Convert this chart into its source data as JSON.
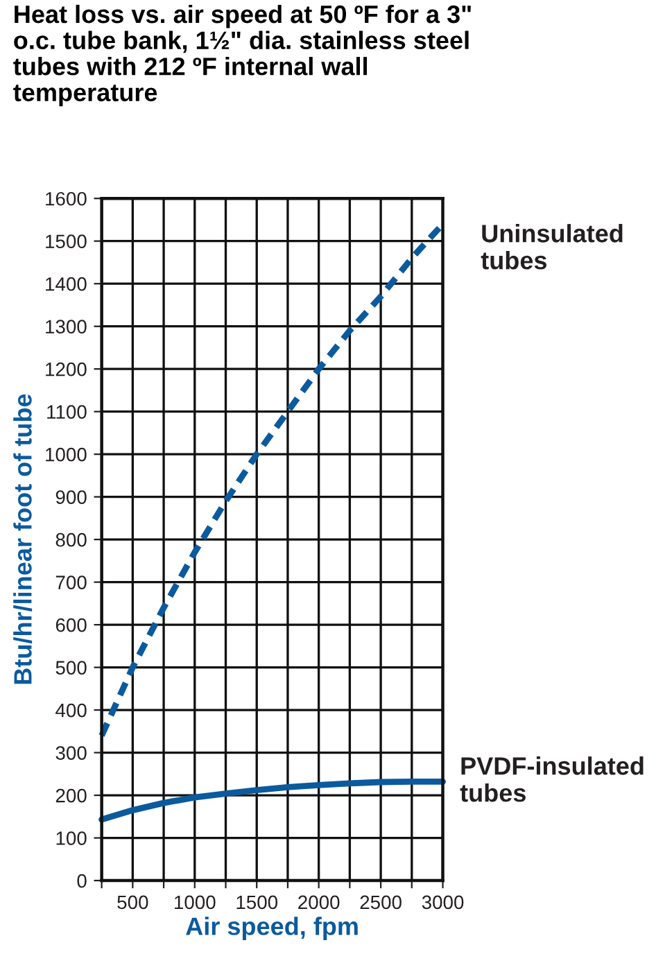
{
  "chart_data": {
    "type": "line",
    "title": "Heat loss vs. air speed at 50 ºF for a 3\" o.c. tube bank, 1½\" dia. stainless steel tubes with 212 ºF internal wall temperature",
    "xlabel": "Air speed, fpm",
    "ylabel": "Btu/hr/linear foot of tube",
    "x": [
      250,
      500,
      750,
      1000,
      1250,
      1500,
      1750,
      2000,
      2250,
      2500,
      2750,
      3000
    ],
    "series": [
      {
        "name": "Uninsulated tubes",
        "color": "#0b5a9e",
        "line_style": "dashed",
        "values": [
          340,
          500,
          640,
          770,
          890,
          1000,
          1100,
          1200,
          1290,
          1370,
          1460,
          1540
        ]
      },
      {
        "name": "PVDF-insulated tubes",
        "color": "#0b5a9e",
        "line_style": "solid",
        "values": [
          143,
          165,
          182,
          195,
          204,
          212,
          219,
          224,
          228,
          231,
          232,
          232
        ]
      }
    ],
    "xlim": [
      250,
      3000
    ],
    "xticks": [
      {
        "value": 250,
        "label": null
      },
      500,
      {
        "value": 750,
        "label": null
      },
      1000,
      {
        "value": 1250,
        "label": null
      },
      1500,
      {
        "value": 1750,
        "label": null
      },
      2000,
      {
        "value": 2250,
        "label": null
      },
      2500,
      {
        "value": 2750,
        "label": null
      },
      3000
    ],
    "ylim": [
      0,
      1600
    ],
    "yticks": [
      0,
      100,
      200,
      300,
      400,
      500,
      600,
      700,
      800,
      900,
      1000,
      1100,
      1200,
      1300,
      1400,
      1500,
      1600
    ],
    "grid": true,
    "legend": false,
    "marker": "none"
  }
}
